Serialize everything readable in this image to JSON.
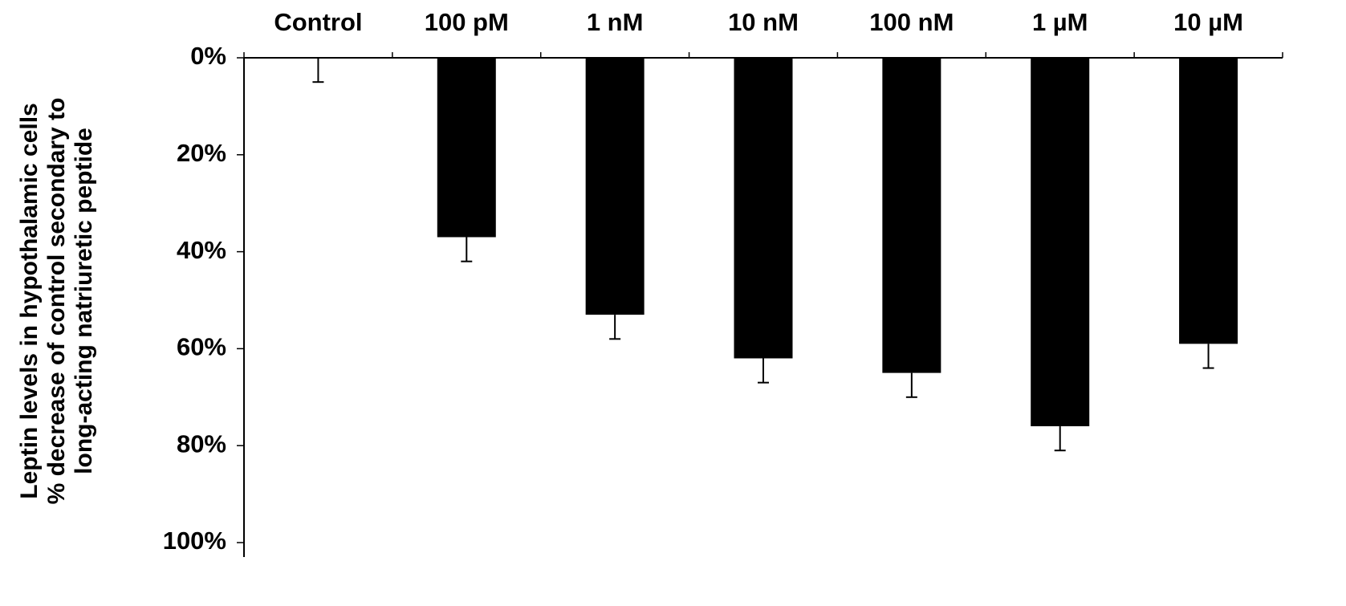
{
  "chart_data": {
    "type": "bar",
    "categories": [
      "Control",
      "100 pM",
      "1 nM",
      "10 nM",
      "100 nM",
      "1 µM",
      "10 µM"
    ],
    "series": [
      {
        "values": [
          0,
          37,
          53,
          62,
          65,
          76,
          59
        ],
        "error": [
          5,
          5,
          5,
          5,
          5,
          5,
          5
        ]
      }
    ],
    "title": "",
    "xlabel": "",
    "ylabel_lines": [
      "Leptin levels in hypothalamic cells",
      "% decrease of control secondary to",
      "long-acting  natriuretic peptide"
    ],
    "ylim": [
      0,
      100
    ],
    "y_inverted": true,
    "y_ticks": [
      "0%",
      "20%",
      "40%",
      "60%",
      "80%",
      "100%"
    ],
    "category_axis_position": "top",
    "grid": false,
    "legend": "none",
    "bar_color": "#000000"
  }
}
